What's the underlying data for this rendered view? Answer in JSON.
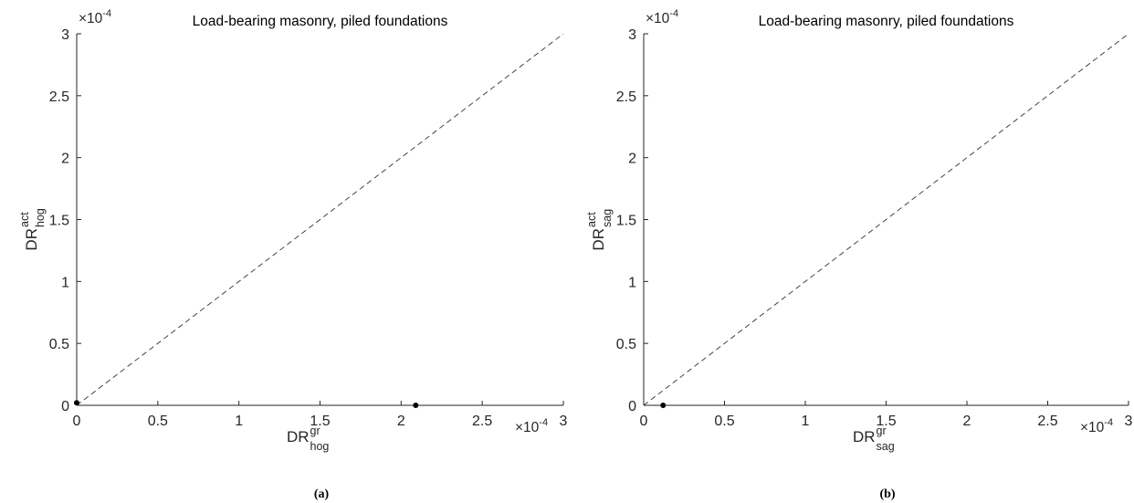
{
  "chart_data": [
    {
      "type": "scatter",
      "title": "Load-bearing masonry, piled foundations",
      "xlabel": {
        "main": "DR",
        "sup": "gr",
        "sub": "hog"
      },
      "ylabel": {
        "main": "DR",
        "sup": "act",
        "sub": "hog"
      },
      "xlim": [
        0,
        3
      ],
      "ylim": [
        0,
        3
      ],
      "ticks": [
        0,
        0.5,
        1,
        1.5,
        2,
        2.5,
        3
      ],
      "tick_labels": [
        "0",
        "0.5",
        "1",
        "1.5",
        "2",
        "2.5",
        "3"
      ],
      "x_multiplier": "×10-4",
      "y_multiplier": "×10-4",
      "reference_line": "y = x (dashed)",
      "points": [
        {
          "x": 0.0,
          "y": 0.02
        },
        {
          "x": 2.09,
          "y": 0.0
        }
      ],
      "caption": "(a)",
      "grid": false
    },
    {
      "type": "scatter",
      "title": "Load-bearing masonry, piled foundations",
      "xlabel": {
        "main": "DR",
        "sup": "gr",
        "sub": "sag"
      },
      "ylabel": {
        "main": "DR",
        "sup": "act",
        "sub": "sag"
      },
      "xlim": [
        0,
        3
      ],
      "ylim": [
        0,
        3
      ],
      "ticks": [
        0,
        0.5,
        1,
        1.5,
        2,
        2.5,
        3
      ],
      "tick_labels": [
        "0",
        "0.5",
        "1",
        "1.5",
        "2",
        "2.5",
        "3"
      ],
      "x_multiplier": "×10-4",
      "y_multiplier": "×10-4",
      "reference_line": "y = x (dashed)",
      "points": [
        {
          "x": 0.12,
          "y": 0.0
        }
      ],
      "caption": "(b)",
      "grid": false
    }
  ]
}
